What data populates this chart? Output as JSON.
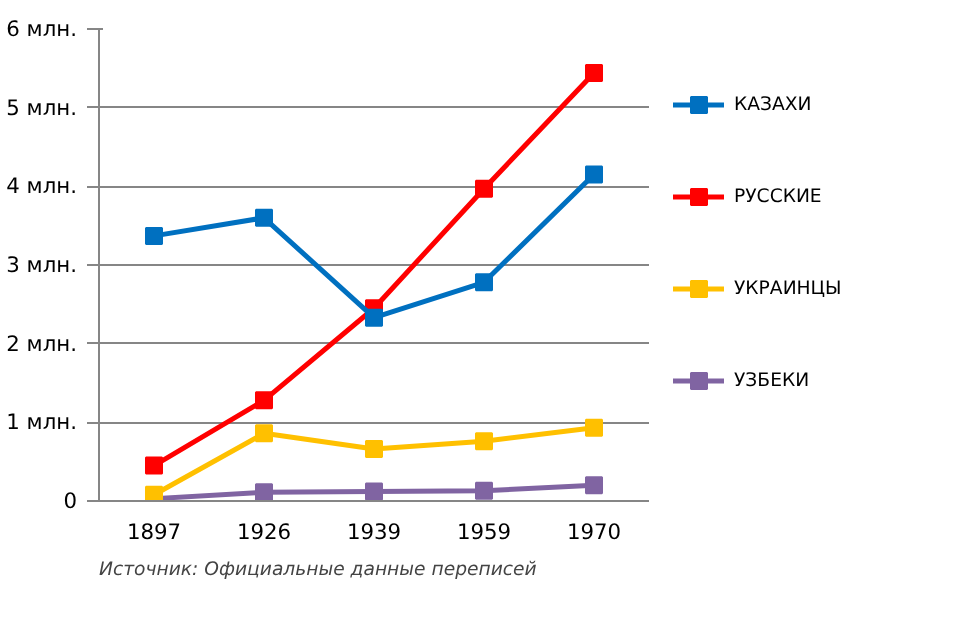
{
  "chart_data": {
    "type": "line",
    "categories": [
      "1897",
      "1926",
      "1939",
      "1959",
      "1970"
    ],
    "series": [
      {
        "name": "КАЗАХИ",
        "color": "#0070c0",
        "values": [
          3.37,
          3.6,
          2.33,
          2.78,
          4.15
        ]
      },
      {
        "name": "РУССКИЕ",
        "color": "#ff0000",
        "values": [
          0.45,
          1.28,
          2.45,
          3.97,
          5.44
        ]
      },
      {
        "name": "УКРАИНЦЫ",
        "color": "#ffc000",
        "values": [
          0.08,
          0.86,
          0.66,
          0.76,
          0.93
        ]
      },
      {
        "name": "УЗБЕКИ",
        "color": "#8064a2",
        "values": [
          0.03,
          0.11,
          0.12,
          0.13,
          0.2
        ]
      }
    ],
    "ylim": [
      0,
      6
    ],
    "yticks": [
      0,
      {
        "value": 1,
        "label": "1 млн."
      },
      {
        "value": 2,
        "label": "2 млн."
      },
      {
        "value": 3,
        "label": "3 млн."
      },
      {
        "value": 4,
        "label": "4 млн."
      },
      {
        "value": 5,
        "label": "5 млн."
      },
      {
        "value": 6,
        "label": "6 млн."
      }
    ],
    "annotations": [
      "Источник: Официальные данные переписей"
    ],
    "grid": "y",
    "legend": "right",
    "marker": "square",
    "line_style": "solid"
  }
}
